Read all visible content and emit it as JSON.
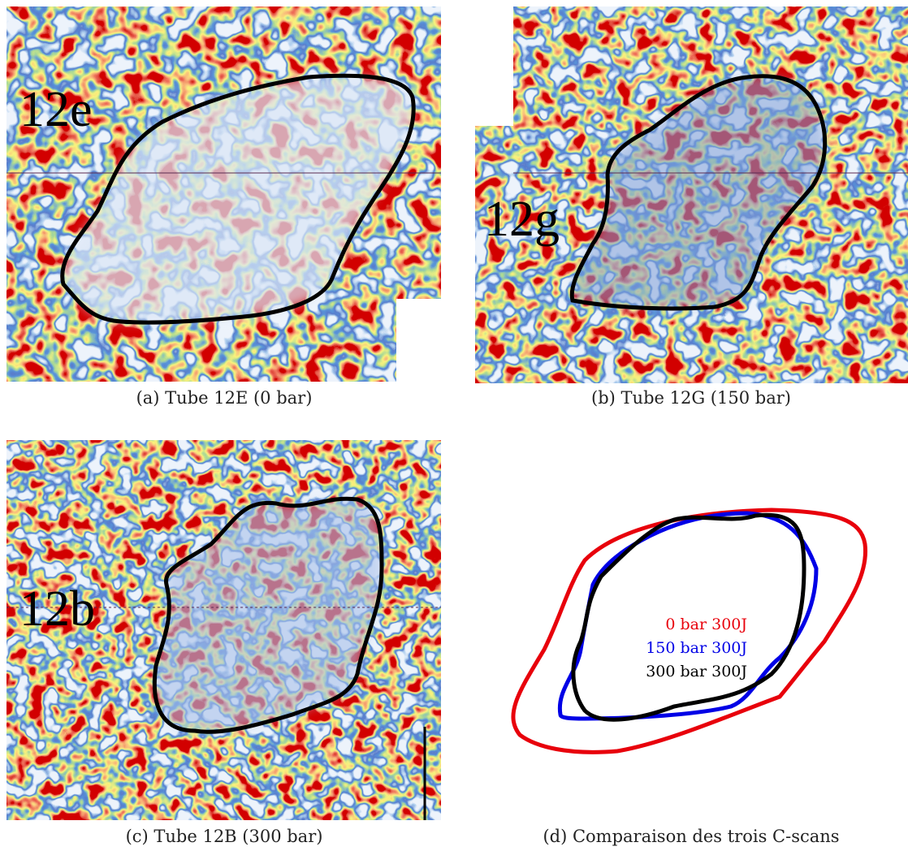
{
  "panels": [
    {
      "label": "12e",
      "caption": "(a) Tube 12E (0 bar)"
    },
    {
      "label": "12g",
      "caption": "(b) Tube 12G (150 bar)"
    },
    {
      "label": "12b",
      "caption": "(c) Tube 12B (300 bar)"
    },
    {
      "caption": "(d) Comparaison des trois C-scans",
      "legend": [
        "0 bar 300J",
        "150 bar 300J",
        "300 bar 300J"
      ]
    }
  ]
}
